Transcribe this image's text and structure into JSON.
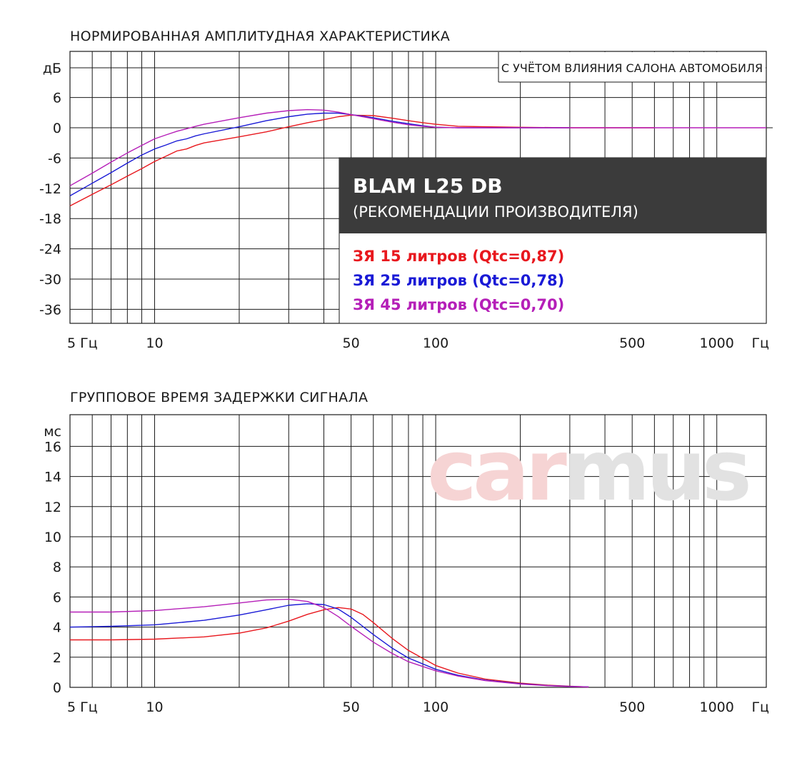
{
  "chart_data": [
    {
      "type": "line",
      "title": "НОРМИРОВАННАЯ АМПЛИТУДНАЯ ХАРАКТЕРИСТИКА",
      "note": "С УЧЁТОМ ВЛИЯНИЯ САЛОНА АВТОМОБИЛЯ",
      "x_scale": "log",
      "xlim": [
        5,
        1500
      ],
      "ylim": [
        -40,
        10
      ],
      "y_unit": "дБ",
      "x_unit": "Гц",
      "x_ticks": [
        {
          "value": 5,
          "label": "5 Гц"
        },
        {
          "value": 10,
          "label": "10"
        },
        {
          "value": 50,
          "label": "50"
        },
        {
          "value": 100,
          "label": "100"
        },
        {
          "value": 500,
          "label": "500"
        },
        {
          "value": 1000,
          "label": "1000"
        }
      ],
      "x_end_label": "Гц",
      "y_ticks": [
        6,
        0,
        -6,
        -12,
        -18,
        -24,
        -30,
        -36
      ],
      "legend": {
        "title": "BLAM L25 DB",
        "subtitle": "(РЕКОМЕНДАЦИИ ПРОИЗВОДИТЕЛЯ)"
      },
      "series": [
        {
          "name": "ЗЯ 15 литров (Qtc=0,87)",
          "color": "#e8181e",
          "x": [
            5,
            6,
            7,
            8,
            9,
            10,
            11,
            12,
            13,
            14,
            15,
            20,
            25,
            30,
            35,
            40,
            45,
            50,
            60,
            70,
            80,
            90,
            100,
            120,
            150,
            200,
            300,
            500,
            600
          ],
          "y": [
            -15.5,
            -13.2,
            -11.3,
            -9.6,
            -8.1,
            -6.7,
            -5.6,
            -4.6,
            -4.2,
            -3.5,
            -3.0,
            -1.8,
            -0.8,
            0.2,
            1.0,
            1.6,
            2.2,
            2.5,
            2.4,
            1.9,
            1.4,
            1.0,
            0.7,
            0.3,
            0.2,
            0.1,
            0.0,
            0.0,
            0.0
          ]
        },
        {
          "name": "ЗЯ 25 литров (Qtc=0,78)",
          "color": "#1a1ad6",
          "x": [
            5,
            6,
            7,
            8,
            9,
            10,
            11,
            12,
            13,
            14,
            15,
            20,
            25,
            30,
            35,
            40,
            45,
            50,
            60,
            70,
            80,
            90,
            100,
            120,
            150,
            200,
            300
          ],
          "y": [
            -13.5,
            -11.0,
            -8.9,
            -7.0,
            -5.4,
            -4.2,
            -3.4,
            -2.6,
            -2.2,
            -1.6,
            -1.2,
            0.2,
            1.4,
            2.2,
            2.7,
            2.9,
            2.9,
            2.6,
            2.0,
            1.3,
            0.8,
            0.4,
            0.1,
            0.0,
            0.0,
            0.0,
            0.0
          ]
        },
        {
          "name": "ЗЯ 45 литров (Qtc=0,70)",
          "color": "#b51fb8",
          "x": [
            5,
            6,
            7,
            8,
            9,
            10,
            11,
            12,
            13,
            14,
            15,
            20,
            25,
            30,
            35,
            40,
            45,
            50,
            60,
            70,
            80,
            90,
            100,
            120,
            150,
            200,
            300,
            500,
            1000,
            1500
          ],
          "y": [
            -11.5,
            -9.0,
            -6.8,
            -5.0,
            -3.5,
            -2.2,
            -1.4,
            -0.7,
            -0.2,
            0.3,
            0.7,
            2.0,
            2.9,
            3.4,
            3.6,
            3.5,
            3.1,
            2.6,
            1.8,
            1.1,
            0.6,
            0.3,
            0.1,
            0.0,
            0.0,
            0.0,
            0.0,
            0.0,
            0.0,
            0.0
          ]
        }
      ]
    },
    {
      "type": "line",
      "title": "ГРУППОВОЕ ВРЕМЯ ЗАДЕРЖКИ СИГНАЛА",
      "x_scale": "log",
      "xlim": [
        5,
        1500
      ],
      "ylim": [
        0,
        18
      ],
      "y_unit": "мс",
      "x_unit": "Гц",
      "x_ticks": [
        {
          "value": 5,
          "label": "5 Гц"
        },
        {
          "value": 10,
          "label": "10"
        },
        {
          "value": 50,
          "label": "50"
        },
        {
          "value": 100,
          "label": "100"
        },
        {
          "value": 500,
          "label": "500"
        },
        {
          "value": 1000,
          "label": "1000"
        }
      ],
      "x_end_label": "Гц",
      "y_ticks": [
        16,
        14,
        12,
        10,
        8,
        6,
        4,
        2,
        0
      ],
      "watermark": {
        "part1": "car",
        "part2": "mus"
      },
      "series": [
        {
          "name": "ЗЯ 15 литров (Qtc=0,87)",
          "color": "#e8181e",
          "x": [
            5,
            7,
            10,
            15,
            20,
            25,
            30,
            35,
            40,
            45,
            50,
            55,
            60,
            70,
            80,
            100,
            120,
            150,
            200,
            250,
            300,
            350
          ],
          "y": [
            3.15,
            3.15,
            3.2,
            3.35,
            3.6,
            3.95,
            4.4,
            4.85,
            5.15,
            5.3,
            5.2,
            4.85,
            4.3,
            3.25,
            2.45,
            1.45,
            0.95,
            0.55,
            0.28,
            0.14,
            0.07,
            0.03
          ]
        },
        {
          "name": "ЗЯ 25 литров (Qtc=0,78)",
          "color": "#1a1ad6",
          "x": [
            5,
            7,
            10,
            15,
            20,
            25,
            30,
            35,
            40,
            45,
            50,
            55,
            60,
            70,
            80,
            100,
            120,
            150,
            200,
            250,
            300,
            350
          ],
          "y": [
            4.0,
            4.05,
            4.15,
            4.45,
            4.8,
            5.15,
            5.45,
            5.55,
            5.5,
            5.2,
            4.65,
            4.05,
            3.5,
            2.6,
            1.95,
            1.2,
            0.8,
            0.48,
            0.24,
            0.12,
            0.06,
            0.03
          ]
        },
        {
          "name": "ЗЯ 45 литров (Qtc=0,70)",
          "color": "#b51fb8",
          "x": [
            5,
            7,
            10,
            15,
            20,
            25,
            30,
            35,
            40,
            45,
            50,
            55,
            60,
            70,
            80,
            100,
            120,
            150,
            200,
            250,
            300,
            350
          ],
          "y": [
            5.0,
            5.0,
            5.1,
            5.35,
            5.6,
            5.8,
            5.85,
            5.7,
            5.3,
            4.7,
            4.05,
            3.5,
            3.0,
            2.25,
            1.7,
            1.1,
            0.75,
            0.45,
            0.22,
            0.11,
            0.05,
            0.02
          ]
        }
      ]
    }
  ]
}
